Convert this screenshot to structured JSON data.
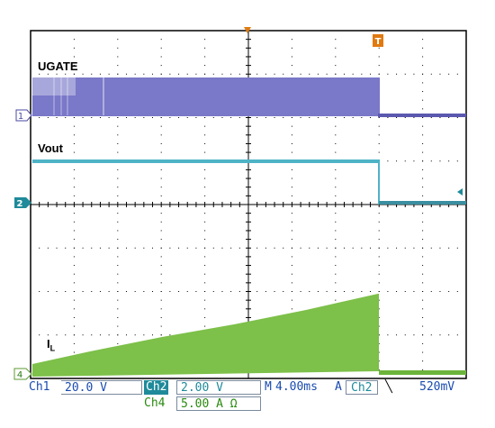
{
  "traces": {
    "ugate": {
      "label": "UGATE",
      "color": "#6f6fc2",
      "channel": "1"
    },
    "vout": {
      "label": "Vout",
      "color": "#4fb3c6",
      "channel": "2"
    },
    "il": {
      "label": "I",
      "label_sub": "L",
      "color": "#7dc04a",
      "channel": "4"
    }
  },
  "trigger_marker": "T",
  "status_bar": {
    "ch1_label": "Ch1",
    "ch1_scale": "20.0 V",
    "ch2_label": "Ch2",
    "ch2_scale": "2.00 V",
    "ch4_label": "Ch4",
    "ch4_scale": "5.00 A Ω",
    "timebase_prefix": "M",
    "timebase": "4.00ms",
    "trigger_mode": "A",
    "trigger_source": "Ch2",
    "trigger_slope_icon": "falling-edge-icon",
    "trigger_level": "520mV"
  },
  "colors": {
    "grid": "#000000",
    "ch1": "#6f6fc2",
    "ch2": "#4fb3c6",
    "ch4": "#7dc04a",
    "trigger": "#e07a10",
    "status_text": "#1a4bb0",
    "ch2_tag_bg": "#1f8a9a"
  }
}
